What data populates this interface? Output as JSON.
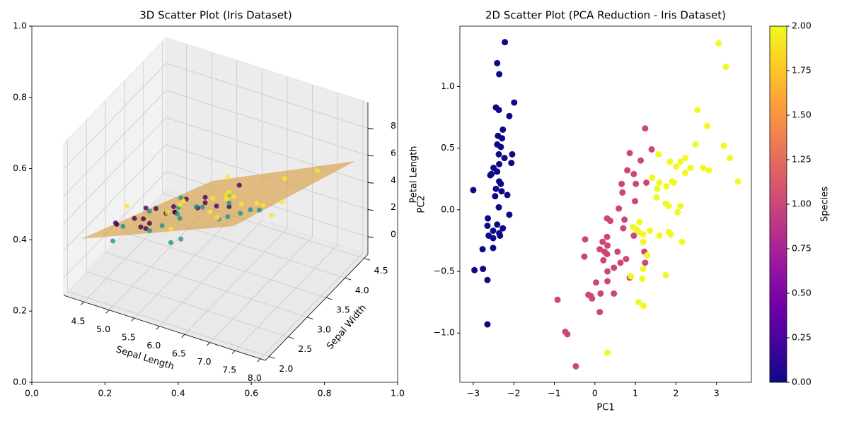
{
  "chart_data": [
    {
      "type": "scatter3d",
      "title": "3D Scatter Plot (Iris Dataset)",
      "xlabel": "Sepal Length",
      "ylabel": "Sepal Width",
      "zlabel": "Petal Length",
      "xlim": [
        4.1,
        8.1
      ],
      "ylim": [
        1.9,
        4.6
      ],
      "zlim": [
        -1.3,
        9.9
      ],
      "xticks": [
        4.5,
        {
          "value": 5,
          "label": "5.0"
        },
        5.5,
        {
          "value": 6,
          "label": "6.0"
        },
        6.5,
        {
          "value": 7,
          "label": "7.0"
        },
        7.5,
        {
          "value": 8,
          "label": "8.0"
        }
      ],
      "yticks": [
        {
          "value": 2,
          "label": "2.0"
        },
        2.5,
        {
          "value": 3,
          "label": "3.0"
        },
        3.5,
        {
          "value": 4,
          "label": "4.0"
        },
        4.5
      ],
      "zticks": [
        0,
        2,
        4,
        6,
        8
      ],
      "axes2d": {
        "xlim": [
          0,
          1
        ],
        "ylim": [
          0,
          1
        ],
        "xticks": [
          {
            "value": 0,
            "label": "0.0"
          },
          {
            "value": 0.2,
            "label": "0.2"
          },
          {
            "value": 0.4,
            "label": "0.4"
          },
          {
            "value": 0.6,
            "label": "0.6"
          },
          {
            "value": 0.8,
            "label": "0.8"
          },
          {
            "value": 1,
            "label": "1.0"
          }
        ],
        "yticks": [
          {
            "value": 0,
            "label": "0.0"
          },
          {
            "value": 0.2,
            "label": "0.2"
          },
          {
            "value": 0.4,
            "label": "0.4"
          },
          {
            "value": 0.6,
            "label": "0.6"
          },
          {
            "value": 0.8,
            "label": "0.8"
          },
          {
            "value": 1,
            "label": "1.0"
          }
        ]
      },
      "series": [
        {
          "color": "#440154",
          "x": [
            5.1,
            4.9,
            4.7,
            4.6,
            5.0,
            5.4,
            4.6,
            5.0,
            4.4,
            4.9,
            5.4,
            4.8,
            4.8,
            4.3,
            5.8,
            5.7,
            5.4,
            5.1,
            5.7,
            5.1
          ],
          "y": [
            3.5,
            3.0,
            3.2,
            3.1,
            3.6,
            3.9,
            3.4,
            3.4,
            2.9,
            3.1,
            3.7,
            3.4,
            3.0,
            3.0,
            4.0,
            4.4,
            3.9,
            3.5,
            3.8,
            3.8
          ],
          "z": [
            1.4,
            1.4,
            1.3,
            1.5,
            1.4,
            1.7,
            1.4,
            1.5,
            1.4,
            1.5,
            1.5,
            1.6,
            1.4,
            1.1,
            1.2,
            1.5,
            1.3,
            1.4,
            1.7,
            1.5
          ]
        },
        {
          "color": "#21918c",
          "x": [
            7.0,
            6.4,
            6.9,
            5.5,
            6.5,
            5.7,
            6.3,
            4.9,
            6.6,
            5.2,
            5.0,
            5.9,
            6.0,
            6.1,
            5.6,
            6.7,
            5.6,
            5.8,
            6.2,
            5.6
          ],
          "y": [
            3.2,
            3.2,
            3.1,
            2.3,
            2.8,
            2.8,
            3.3,
            2.4,
            2.9,
            2.7,
            2.0,
            3.0,
            2.2,
            2.9,
            2.9,
            3.1,
            3.0,
            2.7,
            2.2,
            2.5
          ],
          "z": [
            4.7,
            4.5,
            4.9,
            4.0,
            4.6,
            4.5,
            4.7,
            3.3,
            4.6,
            3.9,
            3.5,
            4.2,
            4.0,
            4.7,
            3.6,
            4.4,
            4.5,
            4.1,
            4.5,
            3.9
          ]
        },
        {
          "color": "#fde725",
          "x": [
            6.3,
            5.8,
            7.1,
            6.3,
            6.5,
            7.6,
            4.9,
            7.3,
            6.7,
            7.2,
            6.5,
            6.4,
            6.8,
            5.7,
            5.8,
            6.4,
            6.5,
            7.7,
            7.7,
            6.0
          ],
          "y": [
            3.3,
            2.7,
            3.0,
            2.9,
            3.0,
            3.0,
            2.5,
            2.9,
            2.5,
            3.6,
            3.2,
            2.7,
            3.0,
            2.5,
            2.8,
            3.2,
            3.0,
            3.8,
            2.6,
            2.2
          ],
          "z": [
            6.0,
            5.1,
            5.9,
            5.6,
            5.8,
            6.6,
            4.5,
            6.3,
            5.8,
            6.1,
            5.1,
            5.3,
            5.5,
            5.0,
            5.1,
            5.3,
            5.5,
            6.7,
            6.9,
            5.0
          ]
        }
      ]
    },
    {
      "type": "scatter",
      "title": "2D Scatter Plot (PCA Reduction - Iris Dataset)",
      "xlabel": "PC1",
      "ylabel": "PC2",
      "xlim": [
        -3.33,
        3.86
      ],
      "ylim": [
        -1.4,
        1.49
      ],
      "xticks": [
        {
          "value": -3,
          "label": "−3"
        },
        {
          "value": -2,
          "label": "−2"
        },
        {
          "value": -1,
          "label": "−1"
        },
        0,
        1,
        2,
        3
      ],
      "yticks": [
        {
          "value": -1,
          "label": "−1.0"
        },
        {
          "value": -0.5,
          "label": "−0.5"
        },
        {
          "value": 0,
          "label": "0.0"
        },
        0.5,
        {
          "value": 1,
          "label": "1.0"
        }
      ],
      "colorbar": {
        "label": "Species",
        "lim": [
          0,
          2
        ],
        "ticks": [
          {
            "value": 0,
            "label": "0.00"
          },
          {
            "value": 0.25,
            "label": "0.25"
          },
          {
            "value": 0.5,
            "label": "0.50"
          },
          {
            "value": 0.75,
            "label": "0.75"
          },
          {
            "value": 1,
            "label": "1.00"
          },
          {
            "value": 1.25,
            "label": "1.25"
          },
          {
            "value": 1.5,
            "label": "1.50"
          },
          {
            "value": 1.75,
            "label": "1.75"
          },
          {
            "value": 2,
            "label": "2.00"
          }
        ],
        "colors": [
          "#0d0887",
          "#46039f",
          "#7201a8",
          "#9c179e",
          "#bd3786",
          "#d8576b",
          "#ed7953",
          "#fb9f3a",
          "#fdca26",
          "#f0f921"
        ]
      },
      "series": [
        {
          "color": "#0d0887",
          "x": [
            -2.22,
            -2.41,
            -2.36,
            -1.99,
            -2.44,
            -2.37,
            -2.11,
            -2.27,
            -2.39,
            -2.29,
            -2.41,
            -2.32,
            -2.04,
            -2.37,
            -2.23,
            -2.36,
            -2.06,
            -2.5,
            -2.41,
            -2.55,
            -2.58,
            -2.36,
            -2.32,
            -3.0,
            -2.44,
            -2.3,
            -2.16,
            -2.46,
            -2.37,
            -2.11,
            -2.64,
            -2.65,
            -2.41,
            -2.27,
            -2.51,
            -2.62,
            -2.36,
            -2.51,
            -2.34,
            -2.77,
            -2.51,
            -2.97,
            -2.76,
            -2.65,
            -2.65
          ],
          "values": [
            1.36,
            1.19,
            1.1,
            0.87,
            0.83,
            0.81,
            0.76,
            0.65,
            0.6,
            0.58,
            0.53,
            0.51,
            0.45,
            0.45,
            0.42,
            0.37,
            0.38,
            0.34,
            0.31,
            0.29,
            0.28,
            0.23,
            0.21,
            0.16,
            0.17,
            0.15,
            0.12,
            0.11,
            0.02,
            -0.04,
            -0.07,
            -0.13,
            -0.12,
            -0.15,
            -0.17,
            -0.21,
            -0.19,
            -0.23,
            -0.21,
            -0.32,
            -0.31,
            -0.49,
            -0.48,
            -0.57,
            -0.93
          ]
        },
        {
          "color": "#cc4778",
          "x": [
            1.24,
            1.4,
            0.86,
            1.13,
            0.8,
            0.96,
            0.66,
            1.01,
            1.27,
            0.68,
            0.99,
            0.59,
            0.73,
            0.3,
            0.38,
            0.7,
            0.96,
            -0.24,
            0.3,
            0.19,
            0.31,
            0.12,
            1.22,
            0.24,
            0.3,
            0.56,
            -0.26,
            0.77,
            0.21,
            0.63,
            1.24,
            0.47,
            0.31,
            0.86,
            0.31,
            0.03,
            0.14,
            0.47,
            -0.16,
            -0.1,
            -0.07,
            -0.92,
            0.12,
            -0.73,
            -0.68,
            -0.47
          ],
          "values": [
            0.66,
            0.49,
            0.46,
            0.4,
            0.32,
            0.29,
            0.21,
            0.21,
            0.22,
            0.14,
            0.07,
            0.01,
            -0.08,
            -0.07,
            -0.09,
            -0.15,
            -0.21,
            -0.24,
            -0.22,
            -0.26,
            -0.29,
            -0.32,
            -0.34,
            -0.34,
            -0.36,
            -0.34,
            -0.38,
            -0.4,
            -0.41,
            -0.43,
            -0.43,
            -0.47,
            -0.5,
            -0.55,
            -0.58,
            -0.59,
            -0.68,
            -0.68,
            -0.69,
            -0.7,
            -0.72,
            -0.73,
            -0.83,
            -0.99,
            -1.01,
            -1.27
          ]
        },
        {
          "color": "#f0f921",
          "x": [
            3.05,
            3.23,
            2.53,
            2.77,
            2.48,
            3.18,
            1.57,
            2.23,
            3.33,
            1.85,
            2.11,
            2.01,
            2.36,
            2.67,
            2.81,
            2.23,
            1.41,
            1.9,
            1.95,
            1.59,
            3.53,
            1.76,
            1.54,
            1.52,
            1.75,
            1.82,
            2.11,
            2.04,
            1.1,
            0.94,
            1.03,
            1.08,
            1.36,
            1.19,
            1.82,
            1.87,
            1.59,
            1.19,
            2.15,
            1.29,
            1.19,
            1.75,
            1.17,
            0.89,
            1.08,
            1.2,
            0.31
          ],
          "values": [
            1.35,
            1.16,
            0.81,
            0.68,
            0.53,
            0.52,
            0.45,
            0.42,
            0.42,
            0.39,
            0.39,
            0.35,
            0.34,
            0.34,
            0.32,
            0.3,
            0.26,
            0.23,
            0.22,
            0.22,
            0.23,
            0.19,
            0.17,
            0.1,
            0.05,
            0.03,
            0.03,
            -0.02,
            -0.1,
            -0.14,
            -0.16,
            -0.18,
            -0.17,
            -0.2,
            -0.18,
            -0.2,
            -0.21,
            -0.26,
            -0.26,
            -0.37,
            -0.48,
            -0.53,
            -0.56,
            -0.54,
            -0.75,
            -0.78,
            -1.16
          ]
        }
      ]
    }
  ]
}
